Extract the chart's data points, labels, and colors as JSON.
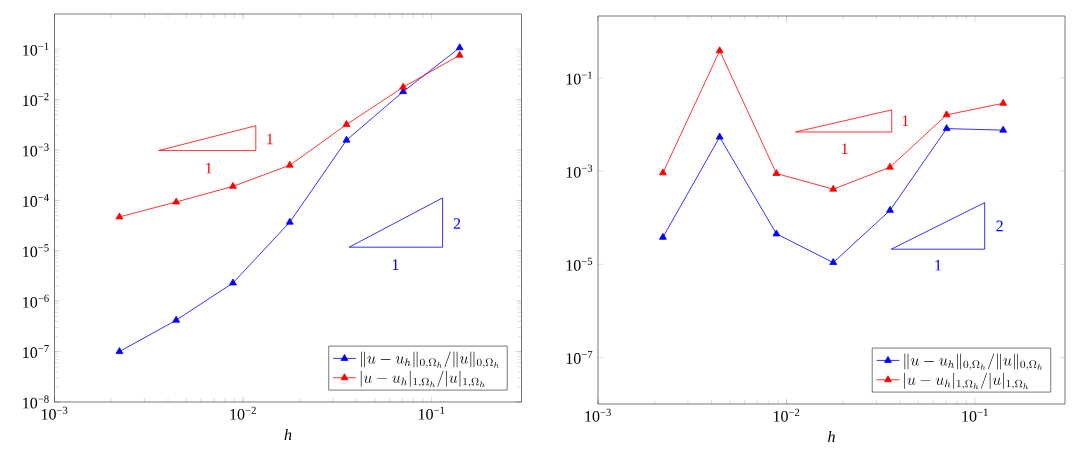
{
  "chart_data": [
    {
      "type": "line",
      "xlabel": "h",
      "log": "xy",
      "marker": "triangle",
      "legend": "bottom right",
      "grid": false,
      "xlim": [
        0.001,
        0.3
      ],
      "ylim": [
        1e-08,
        0.5
      ],
      "xticks": [
        {
          "value": 0.001,
          "label": "10$^{−3}$"
        },
        {
          "value": 0.01,
          "label": "10$^{−2}$"
        },
        {
          "value": 0.1,
          "label": "10$^{−1}$"
        }
      ],
      "yticks": [
        {
          "value": 1e-08,
          "label": "10$^{−8}$"
        },
        {
          "value": 1e-07,
          "label": "10$^{−7}$"
        },
        {
          "value": 1e-06,
          "label": "10$^{−6}$"
        },
        {
          "value": 1e-05,
          "label": "10$^{−5}$"
        },
        {
          "value": 0.0001,
          "label": "10$^{−4}$"
        },
        {
          "value": 0.001,
          "label": "10$^{−3}$"
        },
        {
          "value": 0.01,
          "label": "10$^{−2}$"
        },
        {
          "value": 0.1,
          "label": "10$^{−1}$"
        }
      ],
      "x": [
        0.00221,
        0.00442,
        0.00884,
        0.0177,
        0.0354,
        0.0707,
        0.141
      ],
      "series": [
        {
          "name": "\\|u-u_h\\|_{0,\\Omega_h}/\\|u\\|_{0,\\Omega_h}",
          "color": "#0000ff",
          "values": [
            1e-07,
            4.2e-07,
            2.3e-06,
            3.7e-05,
            0.00157,
            0.0144,
            0.107
          ]
        },
        {
          "name": "|u-u_h|_{1,\\Omega_h}/|u|_{1,\\Omega_h}",
          "color": "#ff0000",
          "values": [
            4.7e-05,
            9.3e-05,
            0.00019,
            0.0005,
            0.0032,
            0.0177,
            0.076
          ]
        }
      ],
      "annotations": [
        "1",
        "1",
        "2",
        "1"
      ]
    },
    {
      "type": "line",
      "xlabel": "h",
      "log": "xy",
      "marker": "triangle",
      "legend": "bottom right",
      "grid": false,
      "xlim": [
        0.001,
        0.3
      ],
      "ylim": [
        1e-08,
        2.15
      ],
      "xticks": [
        {
          "value": 0.001,
          "label": "10$^{−3}$"
        },
        {
          "value": 0.01,
          "label": "10$^{−2}$"
        },
        {
          "value": 0.1,
          "label": "10$^{−1}$"
        }
      ],
      "yticks": [
        {
          "value": 1e-07,
          "label": "10$^{−7}$"
        },
        {
          "value": 1e-05,
          "label": "10$^{−5}$"
        },
        {
          "value": 0.001,
          "label": "10$^{−3}$"
        },
        {
          "value": 0.1,
          "label": "10$^{−1}$"
        }
      ],
      "x": [
        0.00221,
        0.00442,
        0.00884,
        0.0177,
        0.0354,
        0.0707,
        0.141
      ],
      "series": [
        {
          "name": "\\|u-u_h\\|_{0,\\Omega_h}/\\|u\\|_{0,\\Omega_h}",
          "color": "#0000ff",
          "values": [
            3.8e-05,
            0.0054,
            4.5e-05,
            1.09e-05,
            0.000144,
            0.0082,
            0.0076
          ]
        },
        {
          "name": "|u-u_h|_{1,\\Omega_h}/|u|_{1,\\Omega_h}",
          "color": "#ff0000",
          "values": [
            0.00092,
            0.386,
            0.00089,
            0.00041,
            0.00122,
            0.0162,
            0.0287
          ]
        }
      ],
      "annotations": [
        "1",
        "1",
        "2",
        "1"
      ]
    }
  ]
}
